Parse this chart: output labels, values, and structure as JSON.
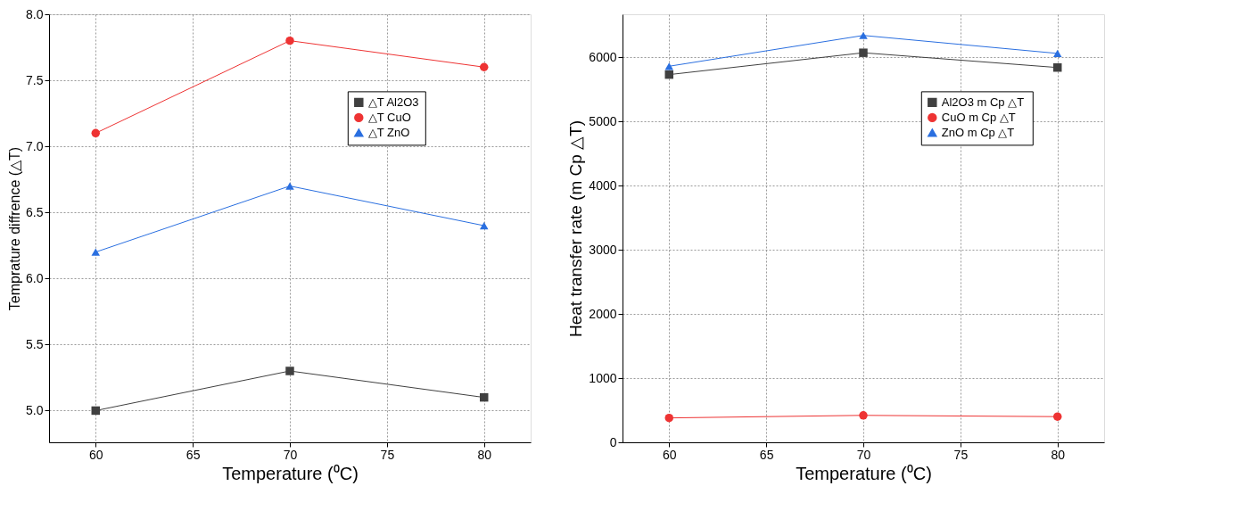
{
  "chart_data": [
    {
      "type": "line",
      "xlabel": "Temperature (⁰C)",
      "ylabel": "Temprature diffrence (△T)",
      "x": [
        60,
        70,
        80
      ],
      "xlim": [
        57.6,
        82.4
      ],
      "xticks": [
        60,
        65,
        70,
        75,
        80
      ],
      "ylim": [
        4.76,
        8.0
      ],
      "yticks": [
        {
          "value": 5,
          "label": "5.0"
        },
        {
          "value": 5.5,
          "label": "5.5"
        },
        {
          "value": 6,
          "label": "6.0"
        },
        {
          "value": 6.5,
          "label": "6.5"
        },
        {
          "value": 7,
          "label": "7.0"
        },
        {
          "value": 7.5,
          "label": "7.5"
        },
        {
          "value": 8,
          "label": "8.0"
        }
      ],
      "grid": true,
      "legend": "top right",
      "line_style": "solid",
      "series": [
        {
          "name": "△T Al2O3",
          "color": "#404040",
          "marker": "square",
          "values": [
            5.0,
            5.3,
            5.1
          ]
        },
        {
          "name": "△T CuO",
          "color": "#ee3333",
          "marker": "circle",
          "values": [
            7.1,
            7.8,
            7.6
          ]
        },
        {
          "name": "△T ZnO",
          "color": "#2a6fe0",
          "marker": "triangle",
          "values": [
            6.2,
            6.7,
            6.4
          ]
        }
      ]
    },
    {
      "type": "line",
      "xlabel": "Temperature (⁰C)",
      "ylabel": "Heat transfer rate (m Cp  △T)",
      "x": [
        60,
        70,
        80
      ],
      "xlim": [
        57.6,
        82.4
      ],
      "xticks": [
        60,
        65,
        70,
        75,
        80
      ],
      "ylim": [
        0,
        6670
      ],
      "yticks": [
        0,
        1000,
        2000,
        3000,
        4000,
        5000,
        6000
      ],
      "grid": true,
      "legend": "top right",
      "line_style": "solid",
      "series": [
        {
          "name": "Al2O3 m Cp  △T",
          "color": "#404040",
          "marker": "square",
          "values": [
            5730,
            6070,
            5840
          ]
        },
        {
          "name": "CuO m Cp  △T",
          "color": "#ee3333",
          "marker": "circle",
          "values": [
            380,
            420,
            400
          ]
        },
        {
          "name": "ZnO m Cp  △T",
          "color": "#2a6fe0",
          "marker": "triangle",
          "values": [
            5860,
            6340,
            6060
          ]
        }
      ]
    }
  ]
}
